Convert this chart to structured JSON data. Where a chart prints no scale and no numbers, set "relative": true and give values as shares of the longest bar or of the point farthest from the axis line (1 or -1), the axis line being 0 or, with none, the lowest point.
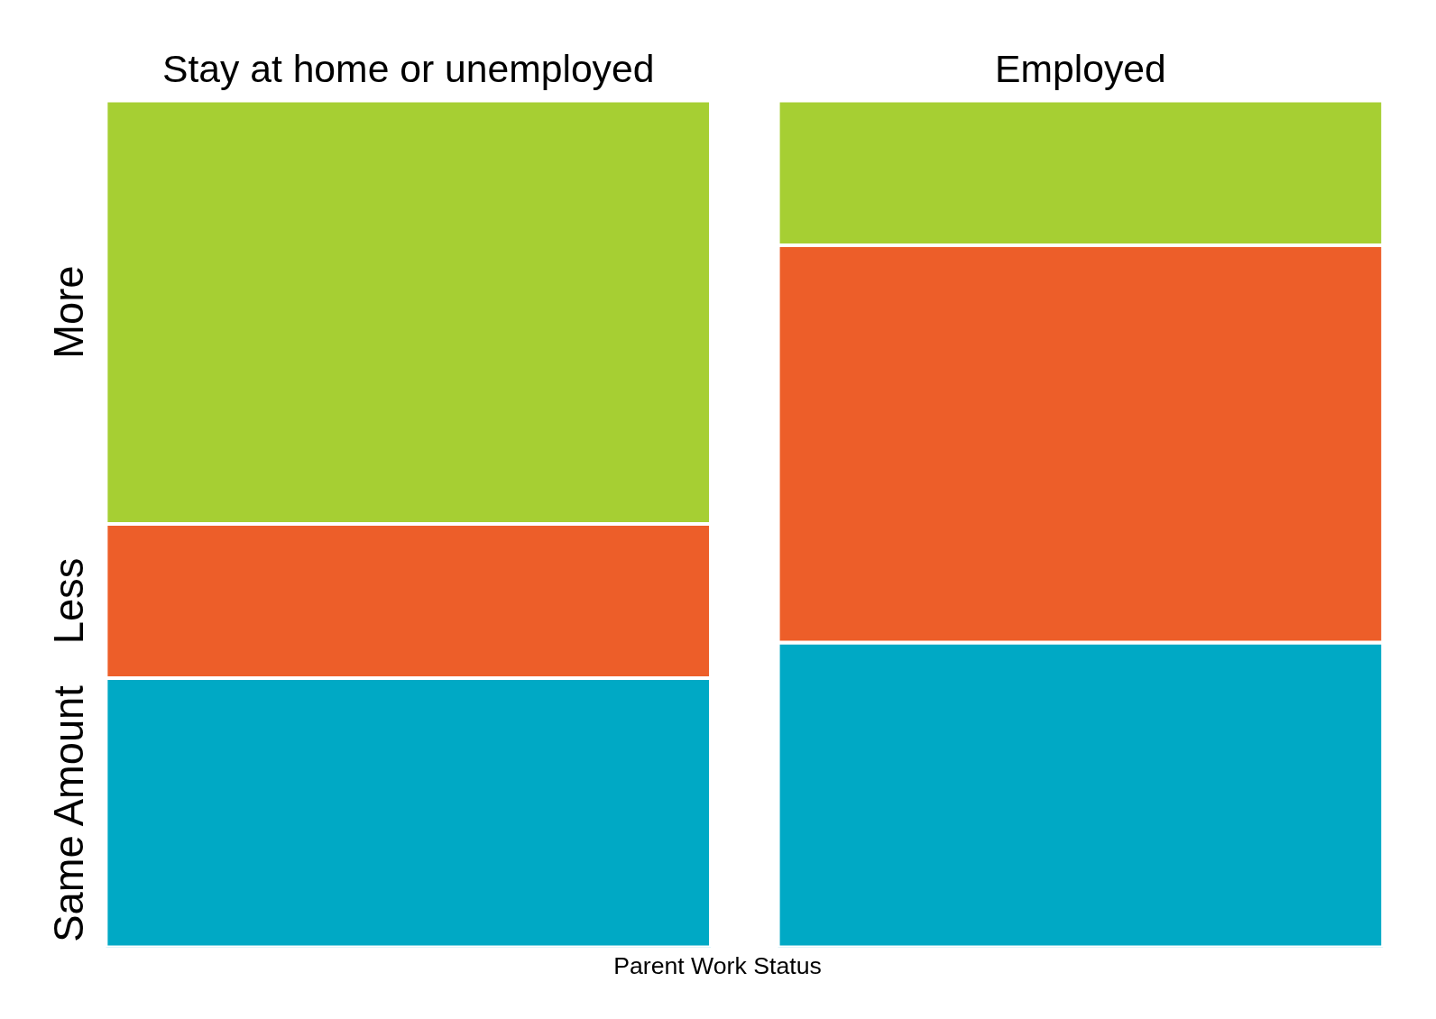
{
  "chart_data": {
    "type": "bar",
    "stacked": true,
    "relative": true,
    "xlabel": "Parent Work Status",
    "categories": [
      "Stay at home or unemployed",
      "Employed"
    ],
    "series": [
      {
        "name": "Same Amount",
        "color": "#00a9c5",
        "values": [
          0.318,
          0.36
        ]
      },
      {
        "name": "Less",
        "color": "#ed5e29",
        "values": [
          0.182,
          0.469
        ]
      },
      {
        "name": "More",
        "color": "#a6cf33",
        "values": [
          0.5,
          0.171
        ]
      }
    ],
    "grid": false
  }
}
